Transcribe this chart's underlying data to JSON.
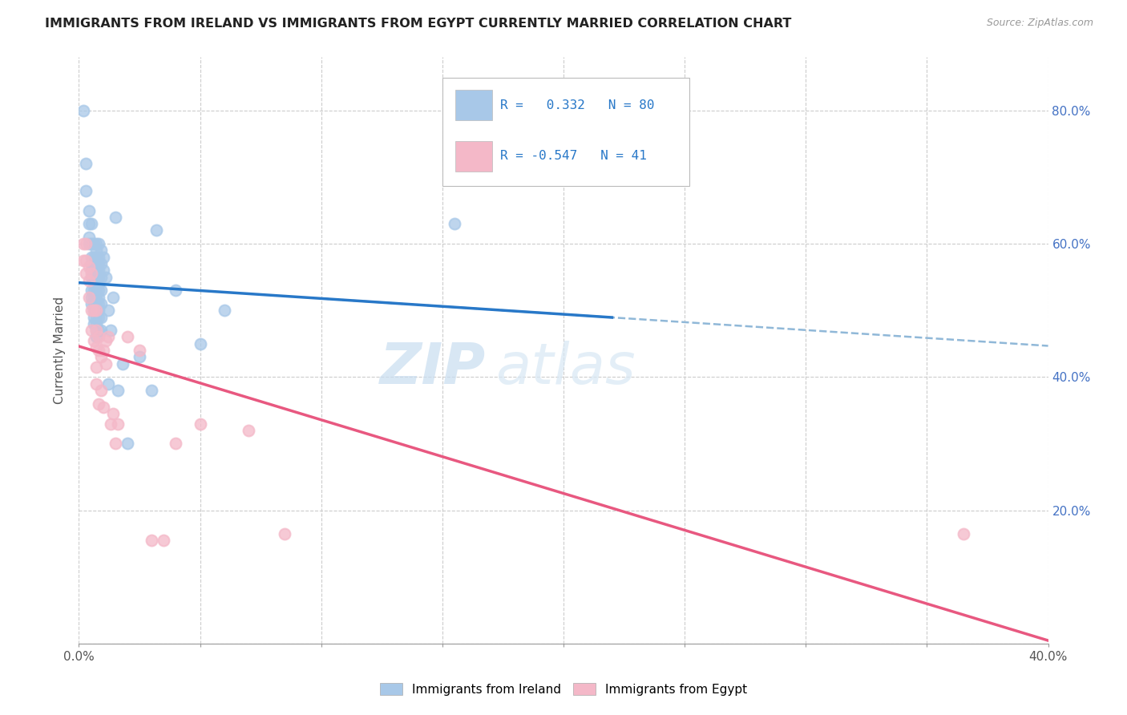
{
  "title": "IMMIGRANTS FROM IRELAND VS IMMIGRANTS FROM EGYPT CURRENTLY MARRIED CORRELATION CHART",
  "source": "Source: ZipAtlas.com",
  "ylabel": "Currently Married",
  "xlim": [
    0.0,
    0.4
  ],
  "ylim": [
    0.0,
    0.88
  ],
  "ireland_color": "#a8c8e8",
  "egypt_color": "#f4b8c8",
  "ireland_R": 0.332,
  "ireland_N": 80,
  "egypt_R": -0.547,
  "egypt_N": 41,
  "ireland_line_color": "#2878c8",
  "egypt_line_color": "#e85880",
  "dashed_line_color": "#90b8d8",
  "watermark_zip": "ZIP",
  "watermark_atlas": "atlas",
  "ireland_scatter": [
    [
      0.002,
      0.8
    ],
    [
      0.003,
      0.72
    ],
    [
      0.003,
      0.68
    ],
    [
      0.004,
      0.65
    ],
    [
      0.004,
      0.63
    ],
    [
      0.004,
      0.61
    ],
    [
      0.004,
      0.6
    ],
    [
      0.005,
      0.63
    ],
    [
      0.005,
      0.6
    ],
    [
      0.005,
      0.58
    ],
    [
      0.005,
      0.57
    ],
    [
      0.005,
      0.56
    ],
    [
      0.005,
      0.55
    ],
    [
      0.005,
      0.53
    ],
    [
      0.005,
      0.52
    ],
    [
      0.005,
      0.51
    ],
    [
      0.006,
      0.6
    ],
    [
      0.006,
      0.58
    ],
    [
      0.006,
      0.57
    ],
    [
      0.006,
      0.56
    ],
    [
      0.006,
      0.55
    ],
    [
      0.006,
      0.54
    ],
    [
      0.006,
      0.53
    ],
    [
      0.006,
      0.52
    ],
    [
      0.006,
      0.51
    ],
    [
      0.006,
      0.5
    ],
    [
      0.006,
      0.49
    ],
    [
      0.006,
      0.48
    ],
    [
      0.007,
      0.6
    ],
    [
      0.007,
      0.59
    ],
    [
      0.007,
      0.58
    ],
    [
      0.007,
      0.57
    ],
    [
      0.007,
      0.56
    ],
    [
      0.007,
      0.55
    ],
    [
      0.007,
      0.54
    ],
    [
      0.007,
      0.53
    ],
    [
      0.007,
      0.52
    ],
    [
      0.007,
      0.51
    ],
    [
      0.007,
      0.5
    ],
    [
      0.007,
      0.49
    ],
    [
      0.007,
      0.48
    ],
    [
      0.007,
      0.47
    ],
    [
      0.007,
      0.46
    ],
    [
      0.008,
      0.6
    ],
    [
      0.008,
      0.58
    ],
    [
      0.008,
      0.57
    ],
    [
      0.008,
      0.56
    ],
    [
      0.008,
      0.55
    ],
    [
      0.008,
      0.54
    ],
    [
      0.008,
      0.53
    ],
    [
      0.008,
      0.52
    ],
    [
      0.008,
      0.51
    ],
    [
      0.008,
      0.5
    ],
    [
      0.008,
      0.49
    ],
    [
      0.008,
      0.47
    ],
    [
      0.009,
      0.59
    ],
    [
      0.009,
      0.57
    ],
    [
      0.009,
      0.55
    ],
    [
      0.009,
      0.53
    ],
    [
      0.009,
      0.51
    ],
    [
      0.009,
      0.49
    ],
    [
      0.009,
      0.47
    ],
    [
      0.01,
      0.58
    ],
    [
      0.01,
      0.56
    ],
    [
      0.011,
      0.55
    ],
    [
      0.012,
      0.5
    ],
    [
      0.012,
      0.39
    ],
    [
      0.013,
      0.47
    ],
    [
      0.014,
      0.52
    ],
    [
      0.015,
      0.64
    ],
    [
      0.016,
      0.38
    ],
    [
      0.018,
      0.42
    ],
    [
      0.02,
      0.3
    ],
    [
      0.025,
      0.43
    ],
    [
      0.03,
      0.38
    ],
    [
      0.032,
      0.62
    ],
    [
      0.04,
      0.53
    ],
    [
      0.05,
      0.45
    ],
    [
      0.06,
      0.5
    ],
    [
      0.155,
      0.63
    ]
  ],
  "egypt_scatter": [
    [
      0.002,
      0.6
    ],
    [
      0.002,
      0.575
    ],
    [
      0.003,
      0.6
    ],
    [
      0.003,
      0.575
    ],
    [
      0.003,
      0.555
    ],
    [
      0.004,
      0.565
    ],
    [
      0.004,
      0.545
    ],
    [
      0.004,
      0.52
    ],
    [
      0.005,
      0.555
    ],
    [
      0.005,
      0.5
    ],
    [
      0.005,
      0.47
    ],
    [
      0.006,
      0.5
    ],
    [
      0.006,
      0.455
    ],
    [
      0.007,
      0.5
    ],
    [
      0.007,
      0.47
    ],
    [
      0.007,
      0.445
    ],
    [
      0.007,
      0.415
    ],
    [
      0.007,
      0.39
    ],
    [
      0.008,
      0.46
    ],
    [
      0.008,
      0.44
    ],
    [
      0.008,
      0.36
    ],
    [
      0.009,
      0.43
    ],
    [
      0.009,
      0.38
    ],
    [
      0.01,
      0.44
    ],
    [
      0.01,
      0.355
    ],
    [
      0.011,
      0.455
    ],
    [
      0.011,
      0.42
    ],
    [
      0.012,
      0.46
    ],
    [
      0.013,
      0.33
    ],
    [
      0.014,
      0.345
    ],
    [
      0.015,
      0.3
    ],
    [
      0.016,
      0.33
    ],
    [
      0.02,
      0.46
    ],
    [
      0.025,
      0.44
    ],
    [
      0.03,
      0.155
    ],
    [
      0.035,
      0.155
    ],
    [
      0.04,
      0.3
    ],
    [
      0.05,
      0.33
    ],
    [
      0.07,
      0.32
    ],
    [
      0.085,
      0.165
    ],
    [
      0.365,
      0.165
    ]
  ]
}
